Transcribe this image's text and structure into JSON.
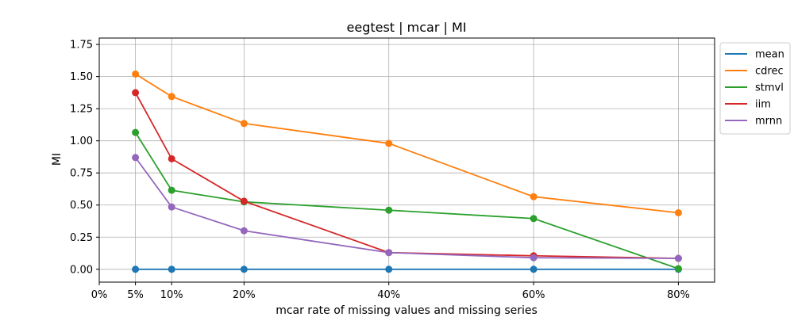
{
  "chart_data": {
    "type": "line",
    "title": "eegtest | mcar | MI",
    "xlabel": "mcar rate of missing values and missing series",
    "ylabel": "MI",
    "x": [
      5,
      10,
      20,
      40,
      60,
      80
    ],
    "xlim": [
      0,
      85
    ],
    "ylim": [
      -0.1,
      1.8
    ],
    "xticks": [
      0,
      5,
      10,
      20,
      40,
      60,
      80
    ],
    "xtick_labels": [
      "0%",
      "5%",
      "10%",
      "20%",
      "40%",
      "60%",
      "80%"
    ],
    "yticks": [
      0.0,
      0.25,
      0.5,
      0.75,
      1.0,
      1.25,
      1.5,
      1.75
    ],
    "ytick_labels": [
      "0.00",
      "0.25",
      "0.50",
      "0.75",
      "1.00",
      "1.25",
      "1.50",
      "1.75"
    ],
    "grid": true,
    "legend_position": "outside-top-right",
    "series": [
      {
        "name": "mean",
        "color": "#1f77b4",
        "values": [
          0.0,
          0.0,
          0.0,
          0.0,
          0.0,
          0.0
        ]
      },
      {
        "name": "cdrec",
        "color": "#ff7f0e",
        "values": [
          1.52,
          1.345,
          1.135,
          0.98,
          0.565,
          0.44
        ]
      },
      {
        "name": "stmvl",
        "color": "#2ca02c",
        "values": [
          1.065,
          0.615,
          0.525,
          0.46,
          0.395,
          0.005
        ]
      },
      {
        "name": "iim",
        "color": "#d62728",
        "values": [
          1.375,
          0.86,
          0.53,
          0.13,
          0.105,
          0.085
        ]
      },
      {
        "name": "mrnn",
        "color": "#9467bd",
        "values": [
          0.87,
          0.485,
          0.3,
          0.13,
          0.09,
          0.085
        ]
      }
    ]
  }
}
